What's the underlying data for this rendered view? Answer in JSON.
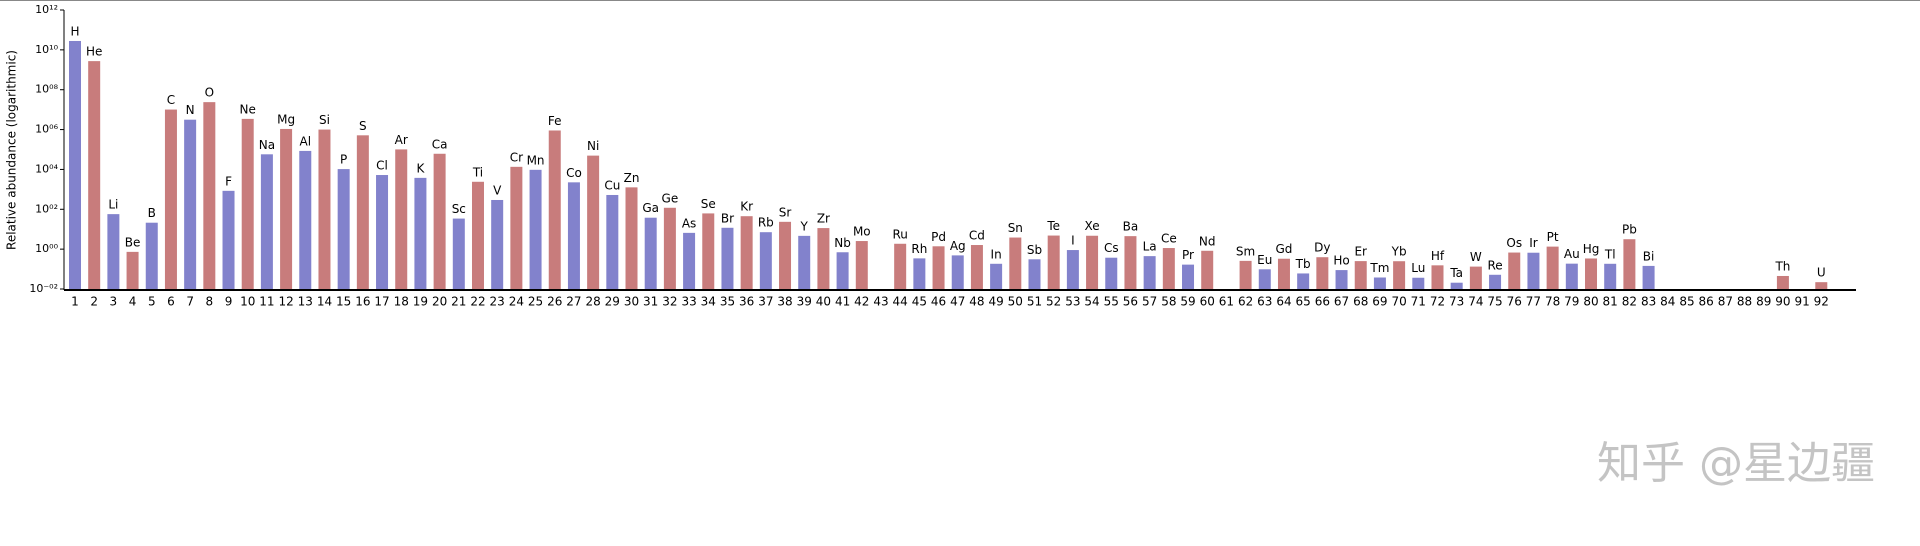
{
  "chart_data": {
    "type": "bar",
    "ylabel": "Relative abundance (logarithmic)",
    "log_scale": true,
    "ylim": [
      0.01,
      1000000000000.0
    ],
    "yticks": [
      {
        "value": 0.01,
        "label": "10⁻⁰²"
      },
      {
        "value": 1,
        "label": "10⁰⁰"
      },
      {
        "value": 100,
        "label": "10⁰²"
      },
      {
        "value": 10000,
        "label": "10⁰⁴"
      },
      {
        "value": 1000000,
        "label": "10⁰⁶"
      },
      {
        "value": 100000000,
        "label": "10⁰⁸"
      },
      {
        "value": 10000000000,
        "label": "10¹⁰"
      },
      {
        "value": 1000000000000,
        "label": "10¹²"
      }
    ],
    "colors": [
      "#8282cc",
      "#c87c7c"
    ],
    "categories": [
      1,
      2,
      3,
      4,
      5,
      6,
      7,
      8,
      9,
      10,
      11,
      12,
      13,
      14,
      15,
      16,
      17,
      18,
      19,
      20,
      21,
      22,
      23,
      24,
      25,
      26,
      27,
      28,
      29,
      30,
      31,
      32,
      33,
      34,
      35,
      36,
      37,
      38,
      39,
      40,
      41,
      42,
      43,
      44,
      45,
      46,
      47,
      48,
      49,
      50,
      51,
      52,
      53,
      54,
      55,
      56,
      57,
      58,
      59,
      60,
      61,
      62,
      63,
      64,
      65,
      66,
      67,
      68,
      69,
      70,
      71,
      72,
      73,
      74,
      75,
      76,
      77,
      78,
      79,
      80,
      81,
      82,
      83,
      84,
      85,
      86,
      87,
      88,
      89,
      90,
      91,
      92
    ],
    "symbols": [
      "H",
      "He",
      "Li",
      "Be",
      "B",
      "C",
      "N",
      "O",
      "F",
      "Ne",
      "Na",
      "Mg",
      "Al",
      "Si",
      "P",
      "S",
      "Cl",
      "Ar",
      "K",
      "Ca",
      "Sc",
      "Ti",
      "V",
      "Cr",
      "Mn",
      "Fe",
      "Co",
      "Ni",
      "Cu",
      "Zn",
      "Ga",
      "Ge",
      "As",
      "Se",
      "Br",
      "Kr",
      "Rb",
      "Sr",
      "Y",
      "Zr",
      "Nb",
      "Mo",
      null,
      "Ru",
      "Rh",
      "Pd",
      "Ag",
      "Cd",
      "In",
      "Sn",
      "Sb",
      "Te",
      "I",
      "Xe",
      "Cs",
      "Ba",
      "La",
      "Ce",
      "Pr",
      "Nd",
      null,
      "Sm",
      "Eu",
      "Gd",
      "Tb",
      "Dy",
      "Ho",
      "Er",
      "Tm",
      "Yb",
      "Lu",
      "Hf",
      "Ta",
      "W",
      "Re",
      "Os",
      "Ir",
      "Pt",
      "Au",
      "Hg",
      "Tl",
      "Pb",
      "Bi",
      null,
      null,
      null,
      null,
      null,
      null,
      "Th",
      null,
      "U"
    ],
    "values": [
      27900000000.0,
      2720000000.0,
      57.1,
      0.73,
      21.2,
      10100000.0,
      3130000.0,
      23800000.0,
      843,
      3440000.0,
      57400,
      1074000.0,
      84900,
      1000000,
      10400,
      515000,
      5240,
      101000,
      3770,
      61100,
      34.2,
      2400,
      293,
      13500,
      9550,
      900000,
      2250,
      49300,
      522,
      1260,
      37.8,
      119,
      6.56,
      62.1,
      11.8,
      45,
      7.09,
      23.5,
      4.64,
      11.4,
      0.698,
      2.55,
      null,
      1.86,
      0.344,
      1.39,
      0.486,
      1.61,
      0.184,
      3.82,
      0.309,
      4.81,
      0.9,
      4.7,
      0.372,
      4.49,
      0.446,
      1.136,
      0.167,
      0.828,
      null,
      0.258,
      0.0973,
      0.33,
      0.0603,
      0.394,
      0.0889,
      0.251,
      0.0378,
      0.248,
      0.0367,
      0.154,
      0.0207,
      0.133,
      0.0517,
      0.675,
      0.661,
      1.34,
      0.187,
      0.34,
      0.184,
      3.15,
      0.144,
      null,
      null,
      null,
      null,
      null,
      null,
      0.045,
      null,
      0.022
    ],
    "watermark": "知乎 @星边疆"
  }
}
